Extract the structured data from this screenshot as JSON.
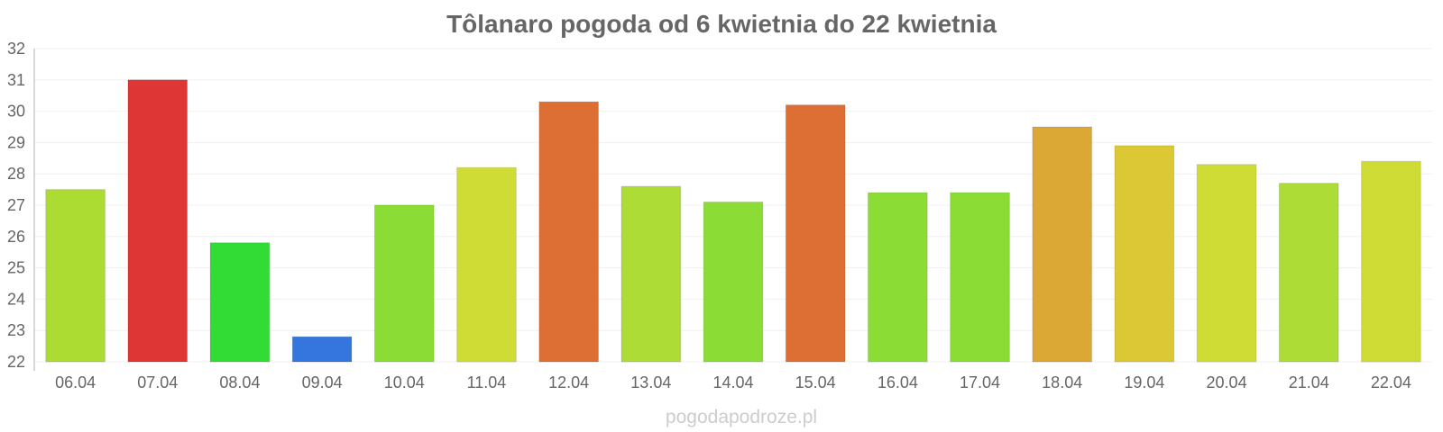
{
  "chart_data": {
    "type": "bar",
    "title": "Tôlanaro pogoda od 6 kwietnia do 22 kwietnia",
    "xlabel": "",
    "ylabel": "",
    "ylim": [
      22,
      32
    ],
    "yticks": [
      22,
      23,
      24,
      25,
      26,
      27,
      28,
      29,
      30,
      31,
      32
    ],
    "grid": true,
    "categories": [
      "06.04",
      "07.04",
      "08.04",
      "09.04",
      "10.04",
      "11.04",
      "12.04",
      "13.04",
      "14.04",
      "15.04",
      "16.04",
      "17.04",
      "18.04",
      "19.04",
      "20.04",
      "21.04",
      "22.04"
    ],
    "values": [
      27.5,
      31.0,
      25.8,
      22.8,
      27.0,
      28.2,
      30.3,
      27.6,
      27.1,
      30.2,
      27.4,
      27.4,
      29.5,
      28.9,
      28.3,
      27.7,
      28.4
    ],
    "colors": [
      "#acdc32",
      "#de3535",
      "#33dc35",
      "#3476de",
      "#8bdc35",
      "#cfdc35",
      "#dd6f35",
      "#acdc35",
      "#8bdc35",
      "#dd6f35",
      "#8bdc35",
      "#8bdc35",
      "#dca835",
      "#dcc835",
      "#cfdc35",
      "#acdc35",
      "#cfdc35"
    ]
  },
  "watermark": "pogodapodroze.pl"
}
